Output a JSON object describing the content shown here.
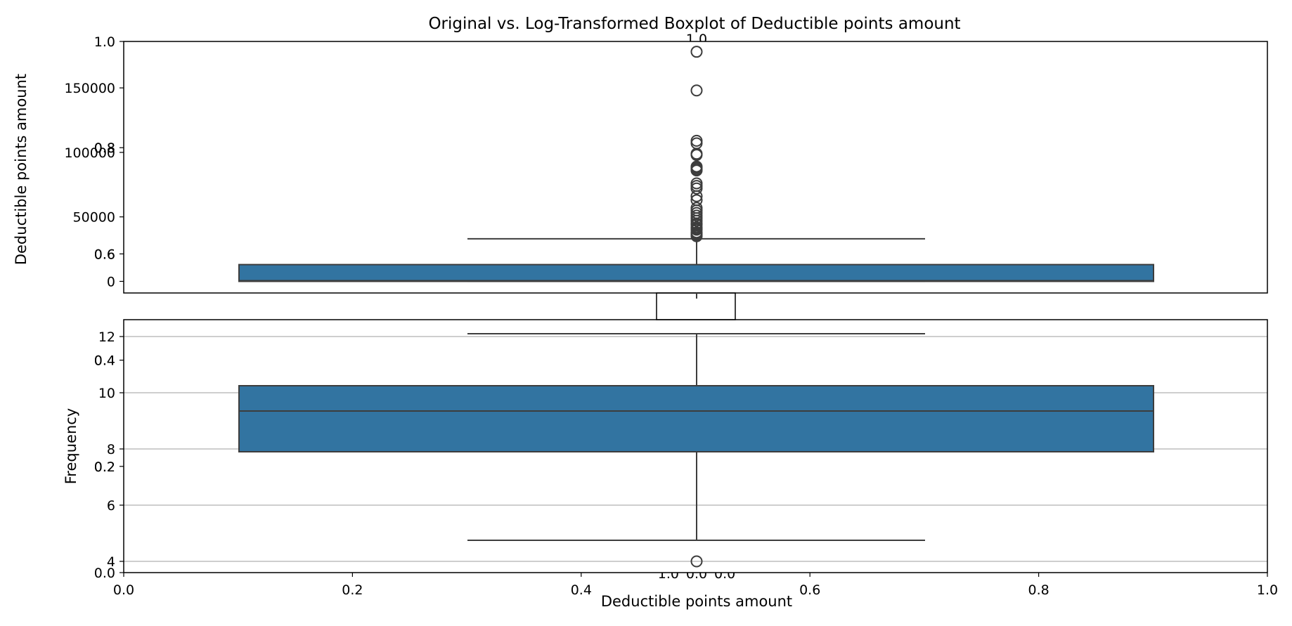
{
  "chart_data": {
    "type": "box",
    "title": "Original vs. Log-Transformed Boxplot of Deductible points amount",
    "colors": {
      "box_fill": "#3274a1",
      "box_edge": "#3d3d3d",
      "grid": "#b0b0b0",
      "axes": "#000000"
    },
    "background_axes": {
      "xticks": [
        "0.0",
        "0.2",
        "0.4",
        "0.6",
        "0.8",
        "1.0"
      ],
      "yticks": [
        "0.0",
        "0.2",
        "0.4",
        "0.6",
        "0.8",
        "1.0"
      ],
      "xlabel": "Deductible points amount",
      "ylabel": "Frequency"
    },
    "original": {
      "ylabel": "Deductible points amount",
      "ylim": [
        -9000,
        186000
      ],
      "yticks": [
        "0",
        "50000",
        "100000",
        "150000"
      ],
      "grid": false,
      "box": {
        "q1": 0,
        "median": 500,
        "q3": 13000,
        "whisker_low": 0,
        "whisker_high": 33000
      },
      "outliers": [
        178000,
        148000,
        109000,
        107000,
        99000,
        98000,
        89000,
        88000,
        87000,
        86000,
        76000,
        74000,
        72000,
        66000,
        63000,
        57000,
        55000,
        53000,
        51000,
        49000,
        47000,
        45000,
        44000,
        42000,
        41000,
        40000,
        38000,
        37000,
        36000,
        35000
      ]
    },
    "log_transformed": {
      "xlabel": "Deductible points amount",
      "ylim": [
        3.6,
        12.6
      ],
      "yticks": [
        "4",
        "6",
        "8",
        "10",
        "12"
      ],
      "grid": true,
      "box": {
        "q1": 7.9,
        "median": 9.35,
        "q3": 10.25,
        "whisker_low": 4.75,
        "whisker_high": 12.1
      },
      "outliers": [
        4.0
      ]
    },
    "inset_axis": {
      "xticks": [
        "1.0",
        "0.0"
      ],
      "yticks": [
        "0.0",
        "1.0"
      ]
    }
  }
}
